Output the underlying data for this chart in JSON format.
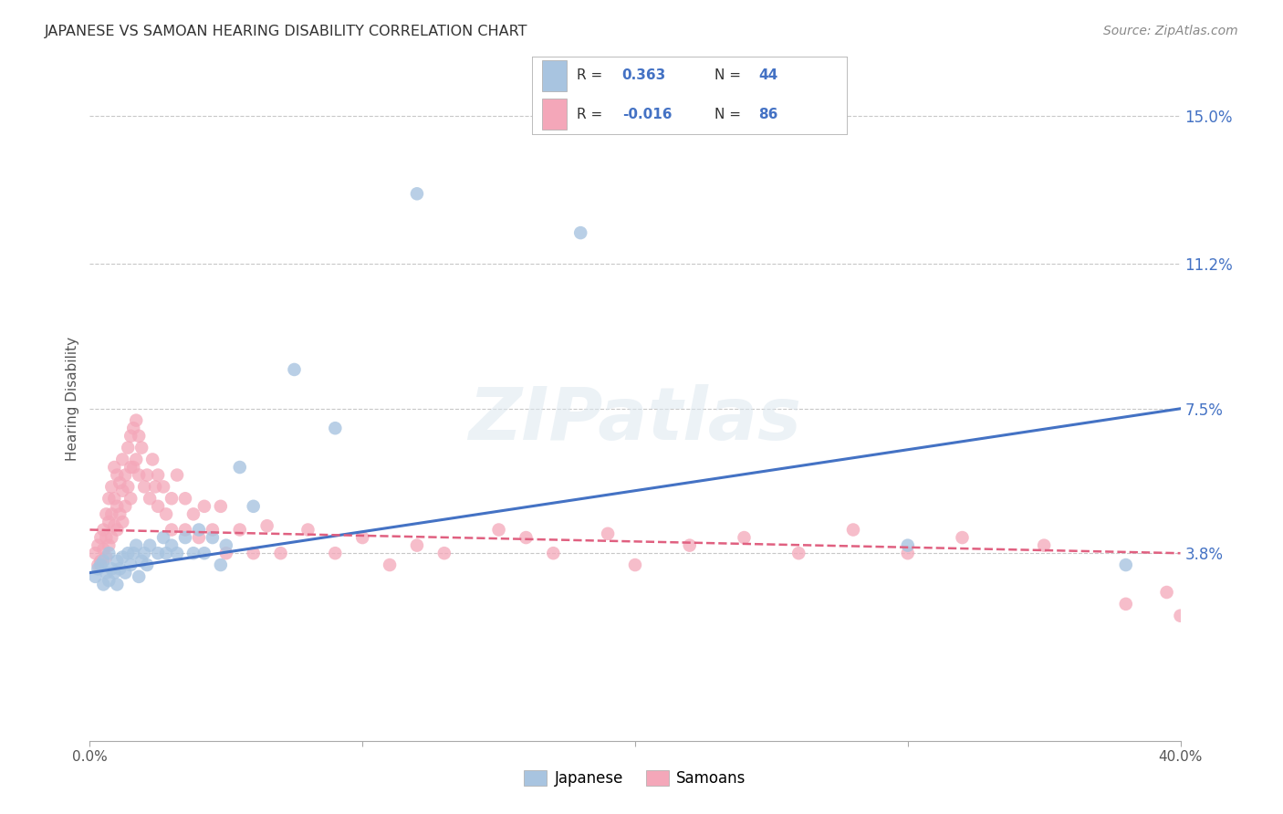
{
  "title": "JAPANESE VS SAMOAN HEARING DISABILITY CORRELATION CHART",
  "source": "Source: ZipAtlas.com",
  "ylabel": "Hearing Disability",
  "xlim": [
    0.0,
    0.4
  ],
  "ylim": [
    -0.01,
    0.165
  ],
  "yticks_right": [
    0.038,
    0.075,
    0.112,
    0.15
  ],
  "ytick_labels_right": [
    "3.8%",
    "7.5%",
    "11.2%",
    "15.0%"
  ],
  "watermark": "ZIPatlas",
  "legend_r_japanese": "0.363",
  "legend_n_japanese": "44",
  "legend_r_samoan": "-0.016",
  "legend_n_samoan": "86",
  "japanese_color": "#a8c4e0",
  "samoan_color": "#f4a7b9",
  "japanese_line_color": "#4472c4",
  "samoan_line_color": "#e06080",
  "background_color": "#ffffff",
  "grid_color": "#c8c8c8",
  "title_color": "#333333",
  "right_label_color": "#4472c4",
  "jp_line_start": 0.033,
  "jp_line_end": 0.075,
  "sa_line_start": 0.044,
  "sa_line_end": 0.038,
  "japanese_points": [
    [
      0.002,
      0.032
    ],
    [
      0.003,
      0.034
    ],
    [
      0.004,
      0.035
    ],
    [
      0.005,
      0.036
    ],
    [
      0.005,
      0.03
    ],
    [
      0.006,
      0.033
    ],
    [
      0.007,
      0.031
    ],
    [
      0.007,
      0.038
    ],
    [
      0.008,
      0.034
    ],
    [
      0.009,
      0.033
    ],
    [
      0.01,
      0.036
    ],
    [
      0.01,
      0.03
    ],
    [
      0.011,
      0.034
    ],
    [
      0.012,
      0.037
    ],
    [
      0.013,
      0.033
    ],
    [
      0.014,
      0.038
    ],
    [
      0.015,
      0.035
    ],
    [
      0.016,
      0.038
    ],
    [
      0.017,
      0.04
    ],
    [
      0.018,
      0.032
    ],
    [
      0.019,
      0.036
    ],
    [
      0.02,
      0.038
    ],
    [
      0.021,
      0.035
    ],
    [
      0.022,
      0.04
    ],
    [
      0.025,
      0.038
    ],
    [
      0.027,
      0.042
    ],
    [
      0.028,
      0.038
    ],
    [
      0.03,
      0.04
    ],
    [
      0.032,
      0.038
    ],
    [
      0.035,
      0.042
    ],
    [
      0.038,
      0.038
    ],
    [
      0.04,
      0.044
    ],
    [
      0.042,
      0.038
    ],
    [
      0.045,
      0.042
    ],
    [
      0.048,
      0.035
    ],
    [
      0.05,
      0.04
    ],
    [
      0.055,
      0.06
    ],
    [
      0.06,
      0.05
    ],
    [
      0.075,
      0.085
    ],
    [
      0.09,
      0.07
    ],
    [
      0.12,
      0.13
    ],
    [
      0.18,
      0.12
    ],
    [
      0.3,
      0.04
    ],
    [
      0.38,
      0.035
    ]
  ],
  "samoan_points": [
    [
      0.002,
      0.038
    ],
    [
      0.003,
      0.04
    ],
    [
      0.003,
      0.035
    ],
    [
      0.004,
      0.042
    ],
    [
      0.004,
      0.036
    ],
    [
      0.005,
      0.044
    ],
    [
      0.005,
      0.039
    ],
    [
      0.006,
      0.048
    ],
    [
      0.006,
      0.042
    ],
    [
      0.006,
      0.037
    ],
    [
      0.007,
      0.052
    ],
    [
      0.007,
      0.046
    ],
    [
      0.007,
      0.04
    ],
    [
      0.008,
      0.055
    ],
    [
      0.008,
      0.048
    ],
    [
      0.008,
      0.042
    ],
    [
      0.009,
      0.06
    ],
    [
      0.009,
      0.052
    ],
    [
      0.009,
      0.045
    ],
    [
      0.01,
      0.058
    ],
    [
      0.01,
      0.05
    ],
    [
      0.01,
      0.044
    ],
    [
      0.011,
      0.056
    ],
    [
      0.011,
      0.048
    ],
    [
      0.012,
      0.062
    ],
    [
      0.012,
      0.054
    ],
    [
      0.012,
      0.046
    ],
    [
      0.013,
      0.058
    ],
    [
      0.013,
      0.05
    ],
    [
      0.014,
      0.065
    ],
    [
      0.014,
      0.055
    ],
    [
      0.015,
      0.068
    ],
    [
      0.015,
      0.06
    ],
    [
      0.015,
      0.052
    ],
    [
      0.016,
      0.07
    ],
    [
      0.016,
      0.06
    ],
    [
      0.017,
      0.072
    ],
    [
      0.017,
      0.062
    ],
    [
      0.018,
      0.068
    ],
    [
      0.018,
      0.058
    ],
    [
      0.019,
      0.065
    ],
    [
      0.02,
      0.055
    ],
    [
      0.021,
      0.058
    ],
    [
      0.022,
      0.052
    ],
    [
      0.023,
      0.062
    ],
    [
      0.024,
      0.055
    ],
    [
      0.025,
      0.058
    ],
    [
      0.025,
      0.05
    ],
    [
      0.027,
      0.055
    ],
    [
      0.028,
      0.048
    ],
    [
      0.03,
      0.052
    ],
    [
      0.03,
      0.044
    ],
    [
      0.032,
      0.058
    ],
    [
      0.035,
      0.052
    ],
    [
      0.035,
      0.044
    ],
    [
      0.038,
      0.048
    ],
    [
      0.04,
      0.042
    ],
    [
      0.042,
      0.05
    ],
    [
      0.045,
      0.044
    ],
    [
      0.048,
      0.05
    ],
    [
      0.05,
      0.038
    ],
    [
      0.055,
      0.044
    ],
    [
      0.06,
      0.038
    ],
    [
      0.065,
      0.045
    ],
    [
      0.07,
      0.038
    ],
    [
      0.08,
      0.044
    ],
    [
      0.09,
      0.038
    ],
    [
      0.1,
      0.042
    ],
    [
      0.11,
      0.035
    ],
    [
      0.12,
      0.04
    ],
    [
      0.13,
      0.038
    ],
    [
      0.15,
      0.044
    ],
    [
      0.16,
      0.042
    ],
    [
      0.17,
      0.038
    ],
    [
      0.19,
      0.043
    ],
    [
      0.2,
      0.035
    ],
    [
      0.22,
      0.04
    ],
    [
      0.24,
      0.042
    ],
    [
      0.26,
      0.038
    ],
    [
      0.28,
      0.044
    ],
    [
      0.3,
      0.038
    ],
    [
      0.32,
      0.042
    ],
    [
      0.35,
      0.04
    ],
    [
      0.38,
      0.025
    ],
    [
      0.395,
      0.028
    ],
    [
      0.4,
      0.022
    ]
  ]
}
